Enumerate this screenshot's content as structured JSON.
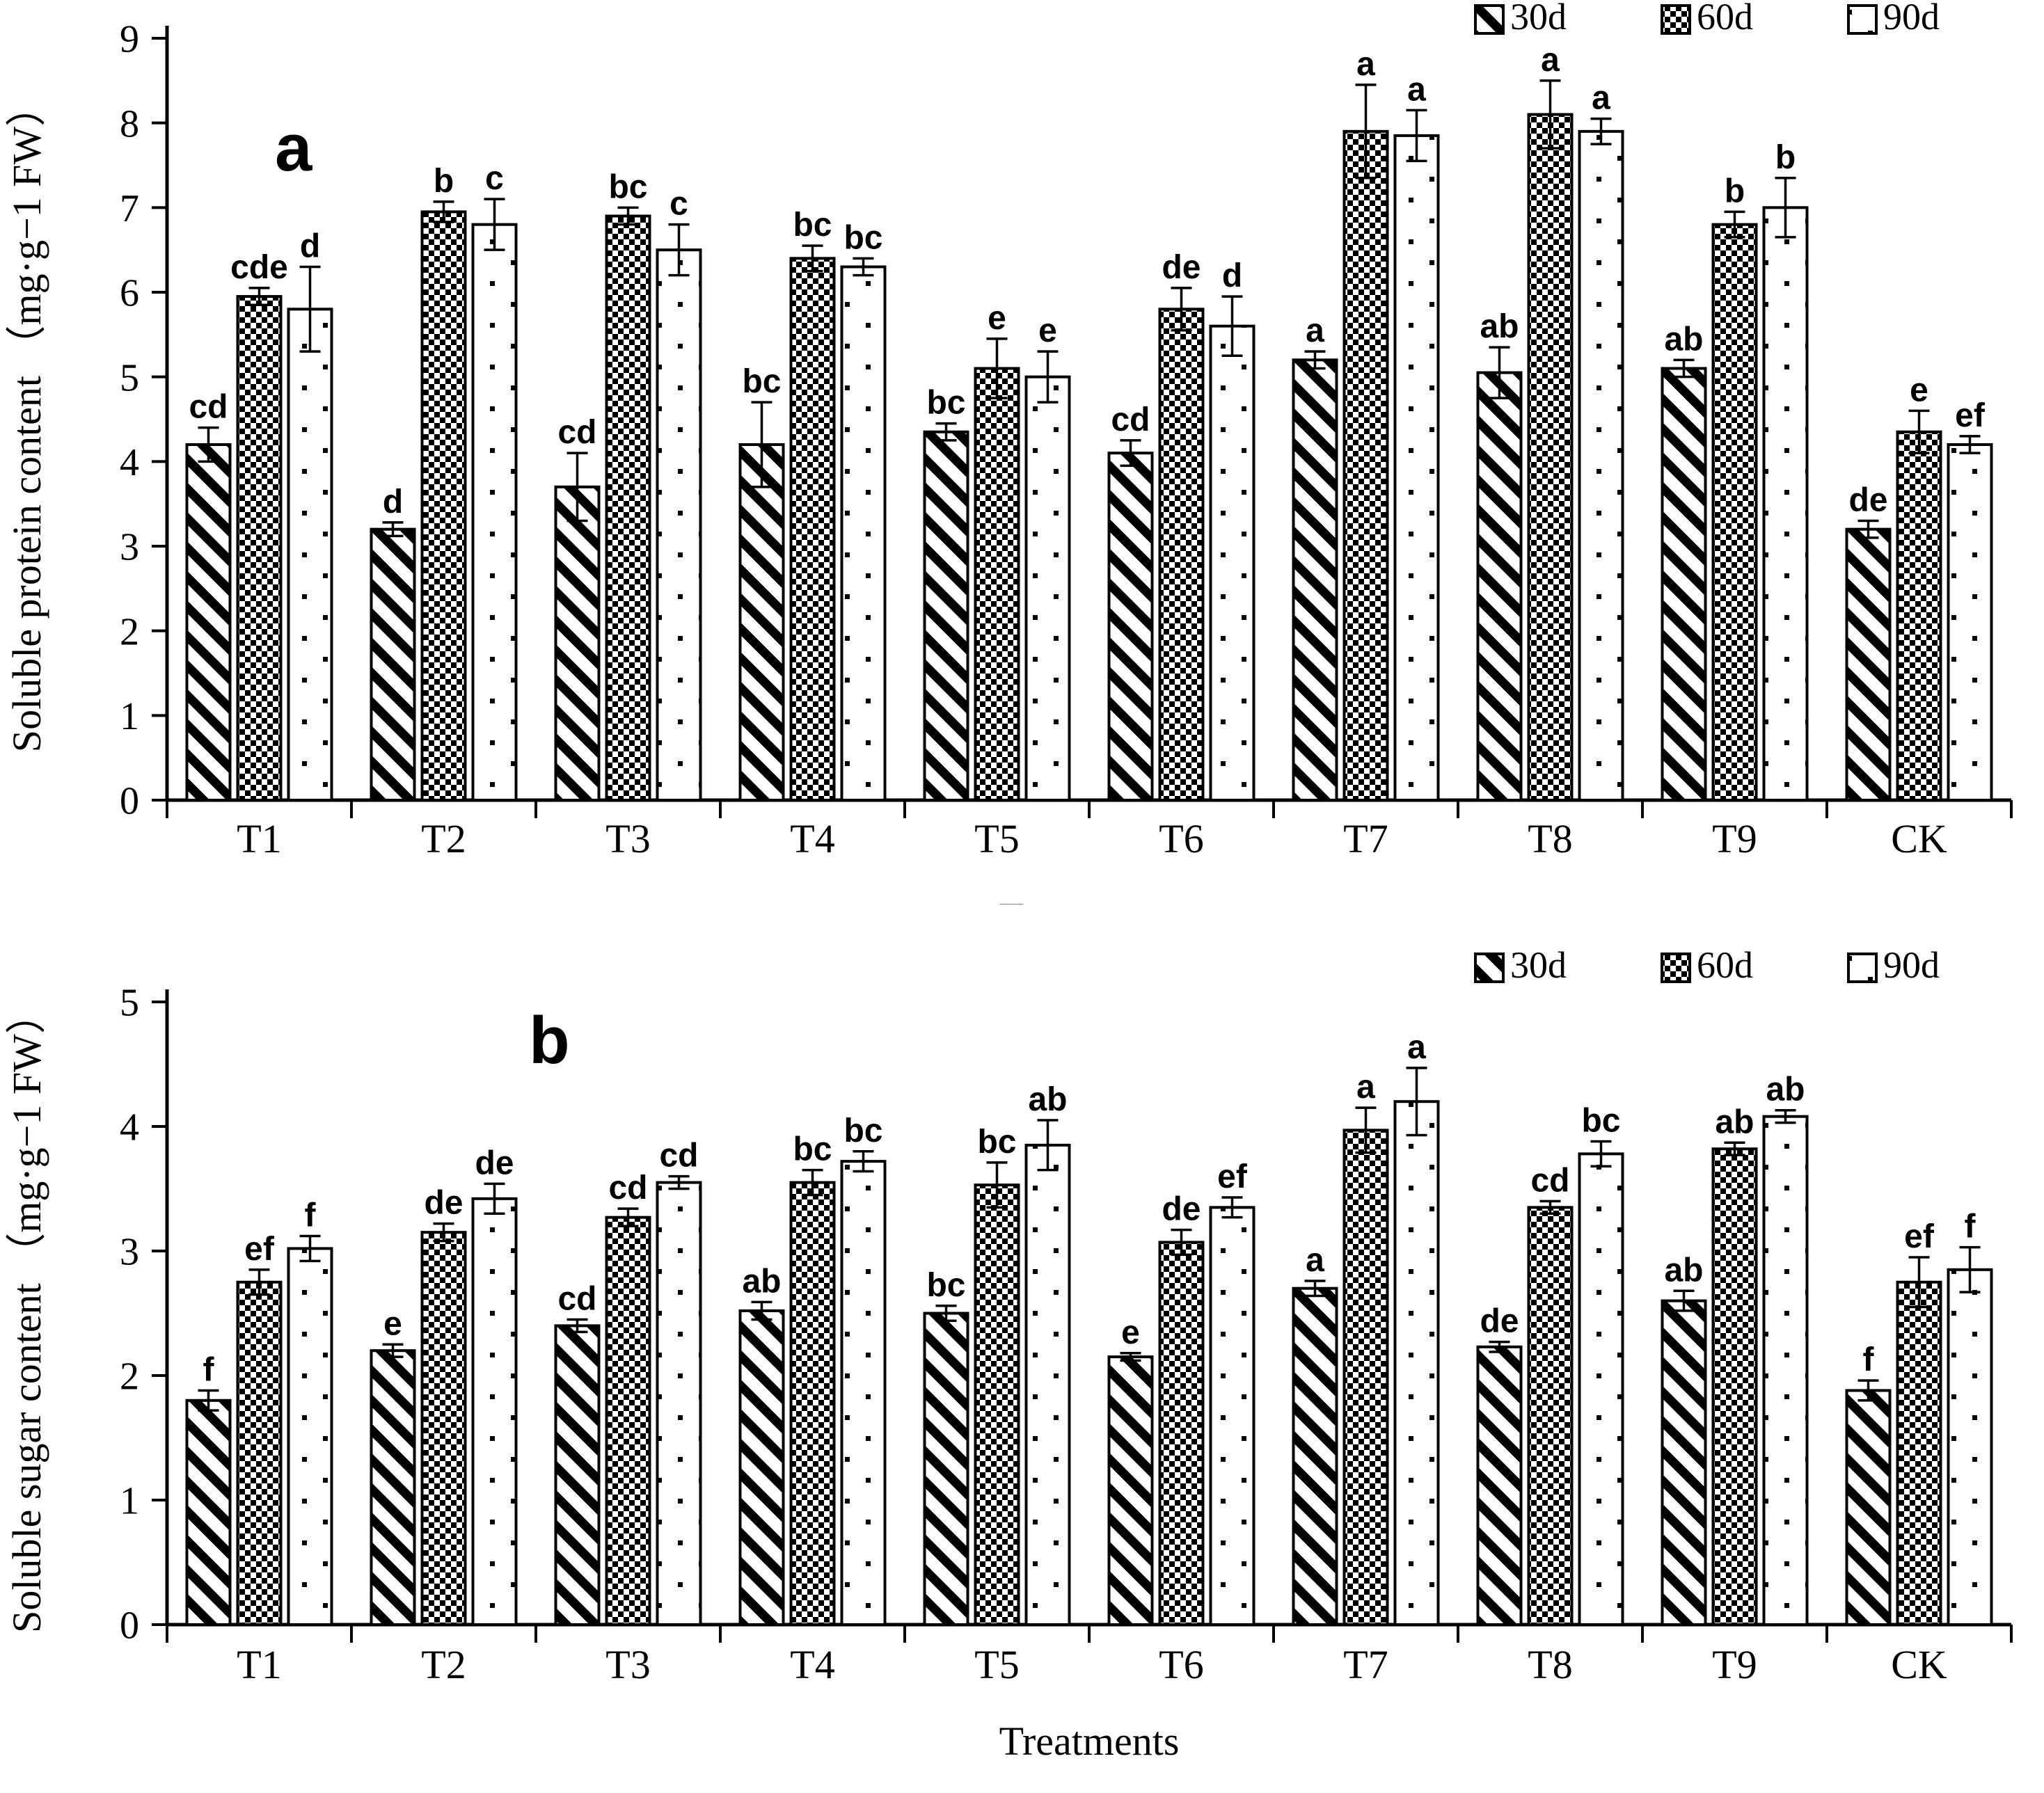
{
  "colors": {
    "ink": "#000000",
    "background": "#ffffff"
  },
  "chart_data": [
    {
      "type": "bar",
      "panel_label": "a",
      "title": "",
      "xlabel": "Treatments",
      "ylabel": "Soluble protein content （mg·g−1 FW）",
      "ylim": [
        0,
        9
      ],
      "ytick_step": 1,
      "grid": false,
      "legend_position": "top-right",
      "categories": [
        "T1",
        "T2",
        "T3",
        "T4",
        "T5",
        "T6",
        "T7",
        "T8",
        "T9",
        "CK"
      ],
      "series": [
        {
          "name": "30d",
          "pattern": "diagonal-stripes",
          "values": [
            4.2,
            3.2,
            3.7,
            4.2,
            4.35,
            4.1,
            5.2,
            5.05,
            5.1,
            3.2
          ],
          "errors": [
            0.2,
            0.08,
            0.4,
            0.5,
            0.1,
            0.15,
            0.1,
            0.3,
            0.1,
            0.1
          ],
          "letters": [
            "cd",
            "d",
            "cd",
            "bc",
            "bc",
            "cd",
            "a",
            "ab",
            "ab",
            "de"
          ]
        },
        {
          "name": "60d",
          "pattern": "checkerboard",
          "values": [
            5.95,
            6.95,
            6.9,
            6.4,
            5.1,
            5.8,
            7.9,
            8.1,
            6.8,
            4.35
          ],
          "errors": [
            0.1,
            0.12,
            0.1,
            0.15,
            0.35,
            0.25,
            0.55,
            0.4,
            0.15,
            0.25
          ],
          "letters": [
            "cde",
            "b",
            "bc",
            "bc",
            "e",
            "de",
            "a",
            "a",
            "b",
            "e"
          ]
        },
        {
          "name": "90d",
          "pattern": "dots",
          "values": [
            5.8,
            6.8,
            6.5,
            6.3,
            5.0,
            5.6,
            7.85,
            7.9,
            7.0,
            4.2
          ],
          "errors": [
            0.5,
            0.3,
            0.3,
            0.1,
            0.3,
            0.35,
            0.3,
            0.15,
            0.35,
            0.1
          ],
          "letters": [
            "d",
            "c",
            "c",
            "bc",
            "e",
            "d",
            "a",
            "a",
            "b",
            "ef"
          ]
        }
      ]
    },
    {
      "type": "bar",
      "panel_label": "b",
      "title": "",
      "xlabel": "Treatments",
      "ylabel": "Soluble sugar content （mg·g−1 FW）",
      "ylim": [
        0,
        5
      ],
      "ytick_step": 1,
      "grid": false,
      "legend_position": "top-right",
      "categories": [
        "T1",
        "T2",
        "T3",
        "T4",
        "T5",
        "T6",
        "T7",
        "T8",
        "T9",
        "CK"
      ],
      "series": [
        {
          "name": "30d",
          "pattern": "diagonal-stripes",
          "values": [
            1.8,
            2.2,
            2.4,
            2.52,
            2.5,
            2.15,
            2.7,
            2.23,
            2.6,
            1.88
          ],
          "errors": [
            0.08,
            0.05,
            0.05,
            0.07,
            0.06,
            0.03,
            0.06,
            0.04,
            0.08,
            0.08
          ],
          "letters": [
            "f",
            "e",
            "cd",
            "ab",
            "bc",
            "e",
            "a",
            "de",
            "ab",
            "f"
          ]
        },
        {
          "name": "60d",
          "pattern": "checkerboard",
          "values": [
            2.75,
            3.15,
            3.27,
            3.55,
            3.53,
            3.07,
            3.97,
            3.35,
            3.82,
            2.75
          ],
          "errors": [
            0.1,
            0.07,
            0.07,
            0.1,
            0.18,
            0.1,
            0.18,
            0.05,
            0.05,
            0.2
          ],
          "letters": [
            "ef",
            "de",
            "cd",
            "bc",
            "bc",
            "de",
            "a",
            "cd",
            "ab",
            "ef"
          ]
        },
        {
          "name": "90d",
          "pattern": "dots",
          "values": [
            3.02,
            3.42,
            3.55,
            3.72,
            3.85,
            3.35,
            4.2,
            3.78,
            4.08,
            2.85
          ],
          "errors": [
            0.1,
            0.12,
            0.05,
            0.08,
            0.2,
            0.08,
            0.27,
            0.1,
            0.05,
            0.18
          ],
          "letters": [
            "f",
            "de",
            "cd",
            "bc",
            "ab",
            "ef",
            "a",
            "bc",
            "ab",
            "f"
          ]
        }
      ]
    }
  ]
}
